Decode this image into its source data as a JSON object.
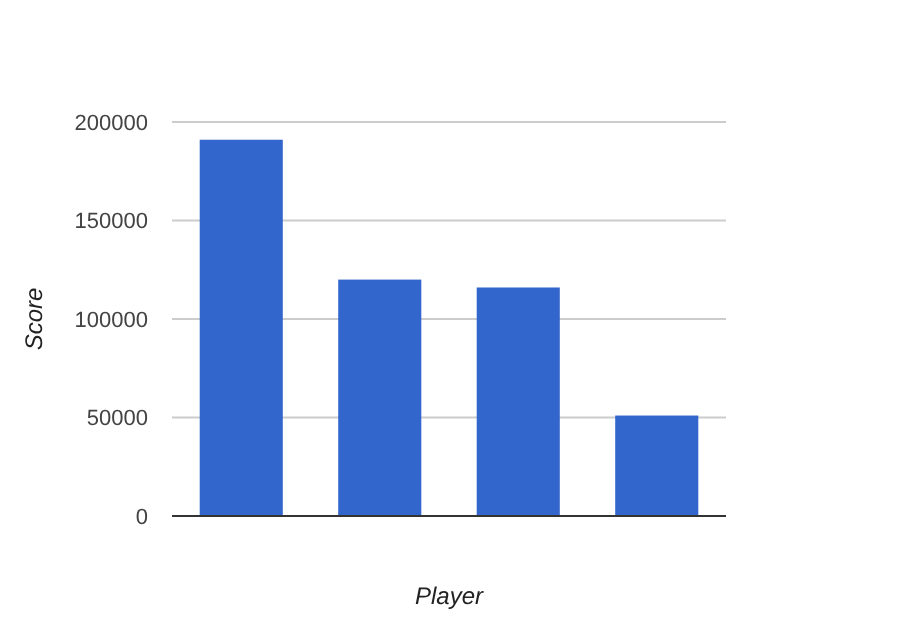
{
  "chart_data": {
    "type": "bar",
    "xlabel": "Player",
    "ylabel": "Score",
    "categories": [
      null,
      null,
      null,
      null
    ],
    "values": [
      191000,
      120000,
      116000,
      51000
    ],
    "color": "#3366cc",
    "ylim": [
      0,
      200000
    ],
    "yticks": [
      0,
      50000,
      100000,
      150000,
      200000
    ],
    "grid": "y"
  }
}
